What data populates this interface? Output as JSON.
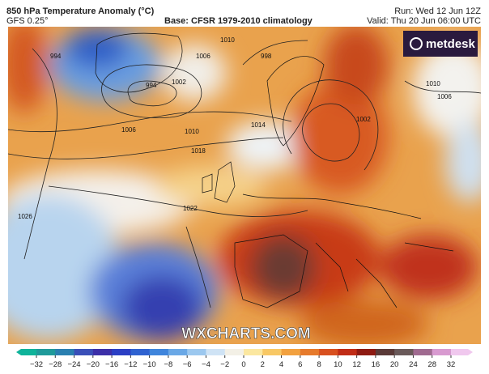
{
  "header": {
    "title": "850 hPa Temperature Anomaly (°C)",
    "model": "GFS 0.25°",
    "base": "Base: CFSR 1979-2010 climatology",
    "run": "Run: Wed 12 Jun 12Z",
    "valid": "Valid: Thu 20 Jun 06:00 UTC"
  },
  "logo": "metdesk",
  "watermark": "WXCHARTS.COM",
  "isobar_labels": [
    "994",
    "994",
    "1002",
    "1006",
    "1010",
    "1014",
    "1018",
    "1022",
    "1026",
    "998",
    "1002",
    "1006",
    "1010",
    "1010",
    "1006"
  ],
  "colorbar": {
    "ticks": [
      {
        "value": -32,
        "label": "−32"
      },
      {
        "value": -28,
        "label": "−28"
      },
      {
        "value": -24,
        "label": "−24"
      },
      {
        "value": -20,
        "label": "−20"
      },
      {
        "value": -16,
        "label": "−16"
      },
      {
        "value": -12,
        "label": "−12"
      },
      {
        "value": -10,
        "label": "−10"
      },
      {
        "value": -8,
        "label": "−8"
      },
      {
        "value": -6,
        "label": "−6"
      },
      {
        "value": -4,
        "label": "−4"
      },
      {
        "value": -2,
        "label": "−2"
      },
      0,
      2,
      4,
      6,
      8,
      10,
      12,
      16,
      20,
      24,
      28,
      32
    ],
    "colors": [
      "#0fb39a",
      "#1f9a9a",
      "#2a7fb0",
      "#3a4fb8",
      "#3c2fa8",
      "#2b3fc4",
      "#2f62d0",
      "#3f85dc",
      "#6aa8e6",
      "#9cc8ef",
      "#cfe3f5",
      "#f3f0e6",
      "#fbe7a0",
      "#f8c865",
      "#f2a13f",
      "#e67a2c",
      "#d8501f",
      "#c02c16",
      "#8e1a12",
      "#5a3a38",
      "#6a5a5a",
      "#a06a90",
      "#d89ad0",
      "#f0c8ee"
    ]
  }
}
